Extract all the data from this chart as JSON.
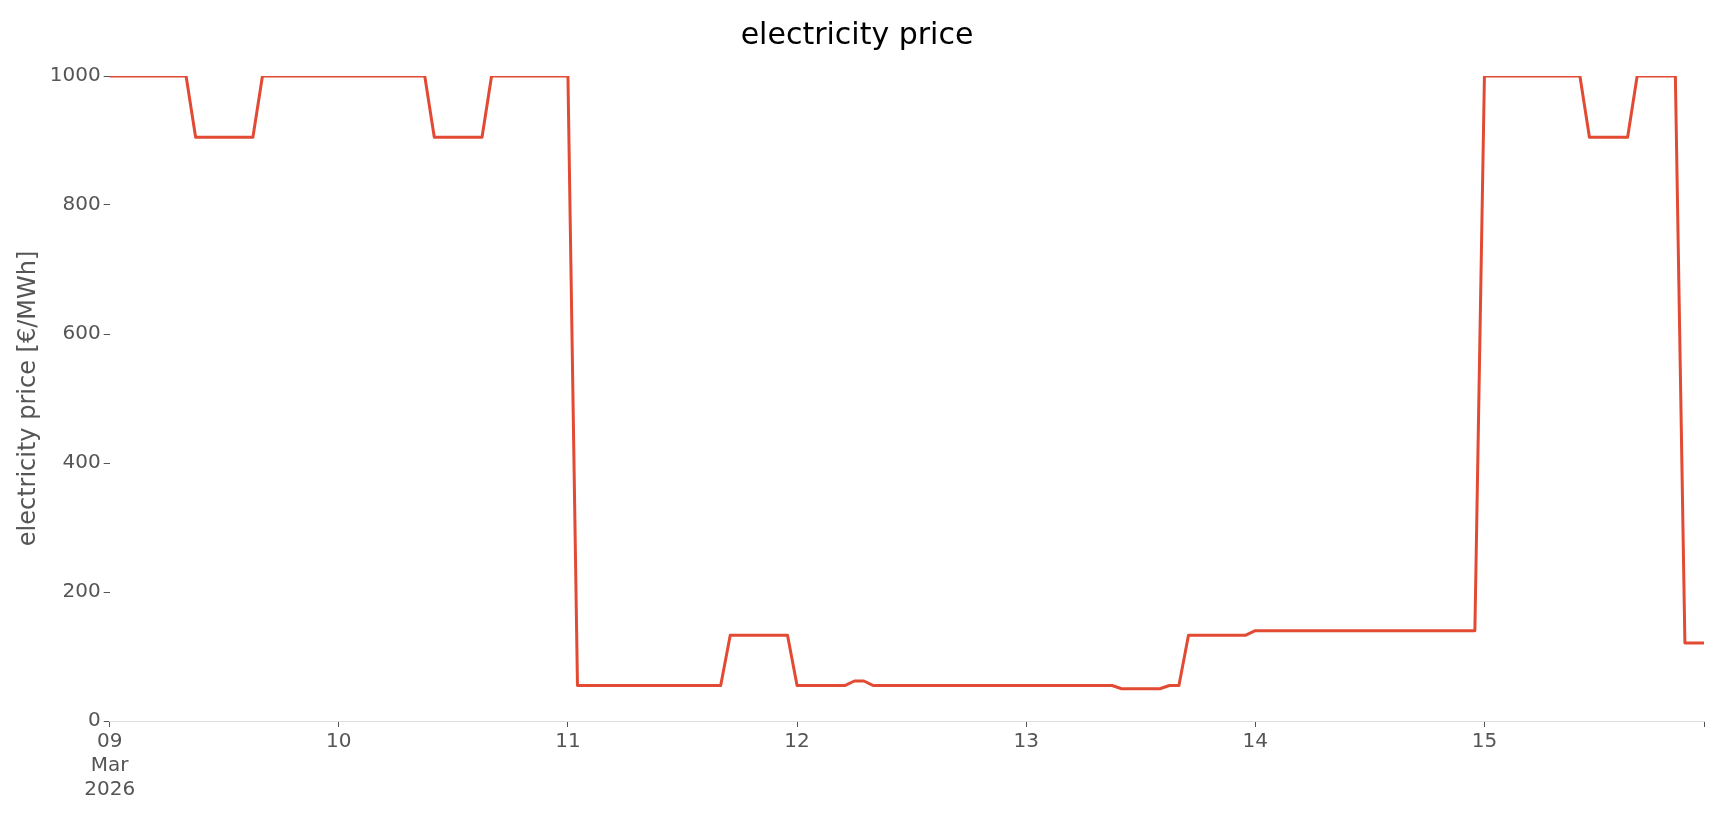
{
  "chart_data": {
    "type": "line",
    "title": "electricity price",
    "ylabel": "electricity price [€/MWh]",
    "x": [
      "2026-03-09T00:00",
      "2026-03-09T08:00",
      "2026-03-09T09:00",
      "2026-03-09T15:00",
      "2026-03-09T16:00",
      "2026-03-10T09:00",
      "2026-03-10T10:00",
      "2026-03-10T15:00",
      "2026-03-10T16:00",
      "2026-03-11T00:00",
      "2026-03-11T01:00",
      "2026-03-11T16:00",
      "2026-03-11T17:00",
      "2026-03-11T23:00",
      "2026-03-12T00:00",
      "2026-03-12T05:00",
      "2026-03-12T06:00",
      "2026-03-12T07:00",
      "2026-03-12T08:00",
      "2026-03-13T09:00",
      "2026-03-13T10:00",
      "2026-03-13T14:00",
      "2026-03-13T15:00",
      "2026-03-13T16:00",
      "2026-03-13T17:00",
      "2026-03-13T23:00",
      "2026-03-14T00:00",
      "2026-03-14T23:00",
      "2026-03-15T00:00",
      "2026-03-15T10:00",
      "2026-03-15T11:00",
      "2026-03-15T15:00",
      "2026-03-15T16:00",
      "2026-03-15T20:00",
      "2026-03-15T21:00",
      "2026-03-15T23:00"
    ],
    "series": [
      {
        "color": "#e24a33",
        "values": [
          1000,
          1000,
          905,
          905,
          1000,
          1000,
          905,
          905,
          1000,
          1000,
          55,
          55,
          133,
          133,
          55,
          55,
          62,
          62,
          55,
          55,
          50,
          50,
          55,
          55,
          133,
          133,
          140,
          140,
          1000,
          1000,
          905,
          905,
          1000,
          1000,
          121,
          121
        ]
      }
    ],
    "xticks": [
      {
        "value": "2026-03-09T00:00",
        "label": "09\nMar\n2026"
      },
      {
        "value": "2026-03-10T00:00",
        "label": "10"
      },
      {
        "value": "2026-03-11T00:00",
        "label": "11"
      },
      {
        "value": "2026-03-12T00:00",
        "label": "12"
      },
      {
        "value": "2026-03-13T00:00",
        "label": "13"
      },
      {
        "value": "2026-03-14T00:00",
        "label": "14"
      },
      {
        "value": "2026-03-15T00:00",
        "label": "15"
      },
      {
        "value": "2026-03-15T23:00",
        "label": null
      }
    ],
    "xlim": [
      "2026-03-09T00:00",
      "2026-03-15T23:00"
    ],
    "ylim": [
      0,
      1000
    ],
    "yticks": [
      0,
      200,
      400,
      600,
      800,
      1000
    ],
    "grid": false,
    "legend": false,
    "marker": "none",
    "line_style": "solid"
  }
}
